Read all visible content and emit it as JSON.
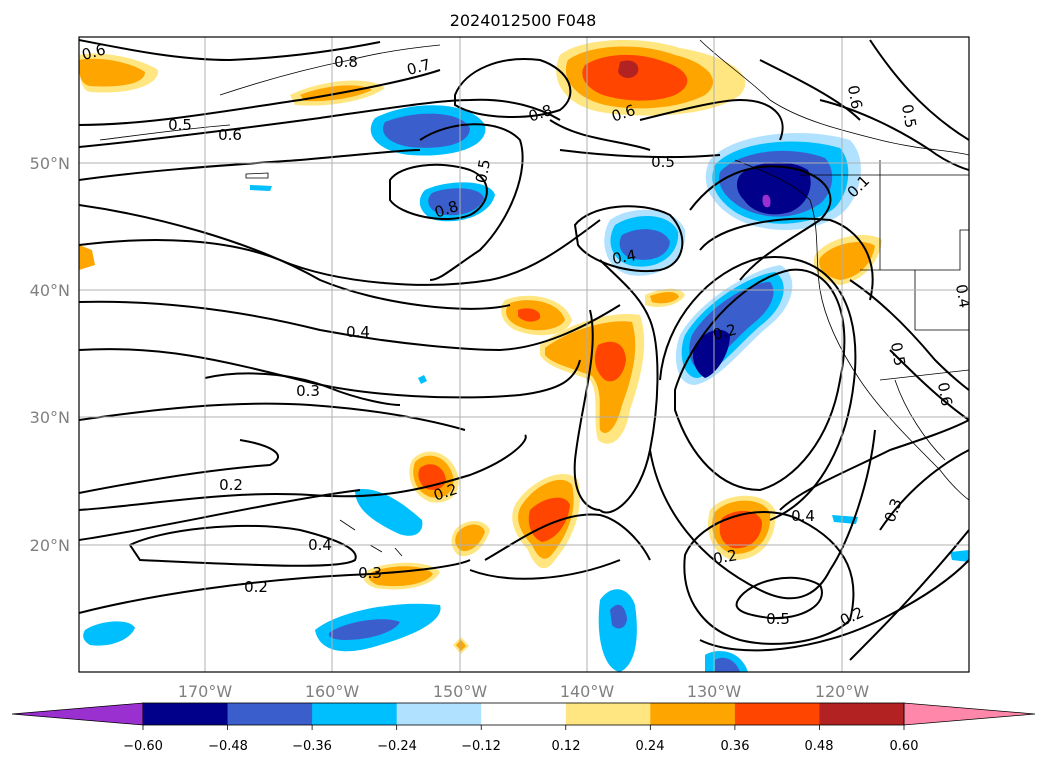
{
  "title": "2024012500 F048",
  "lat_labels": [
    "50°N",
    "40°N",
    "30°N",
    "20°N"
  ],
  "lon_labels": [
    "170°W",
    "160°W",
    "150°W",
    "140°W",
    "130°W",
    "120°W"
  ],
  "colorbar": {
    "ticks": [
      "−0.60",
      "−0.48",
      "−0.36",
      "−0.24",
      "−0.12",
      "0.12",
      "0.24",
      "0.36",
      "0.48",
      "0.60"
    ],
    "colors": [
      "#9b30d0",
      "#00008b",
      "#3a5fcd",
      "#00bfff",
      "#b0e2ff",
      "#ffffff",
      "#ffe680",
      "#ffa500",
      "#ff4500",
      "#b22222",
      "#ff88aa"
    ]
  },
  "contour_labels": [
    "0.6",
    "0.8",
    "0.7",
    "0.5",
    "0.6",
    "0.8",
    "0.6",
    "0.5",
    "0.8",
    "0.5",
    "0.6",
    "0.5",
    "0.1",
    "0.4",
    "0.3",
    "0.2",
    "0.2",
    "0.4",
    "0.3",
    "0.2",
    "0.2",
    "0.4",
    "0.5",
    "0.6",
    "0.4",
    "0.2",
    "0.3",
    "0.4",
    "0.5",
    "0.2"
  ]
}
